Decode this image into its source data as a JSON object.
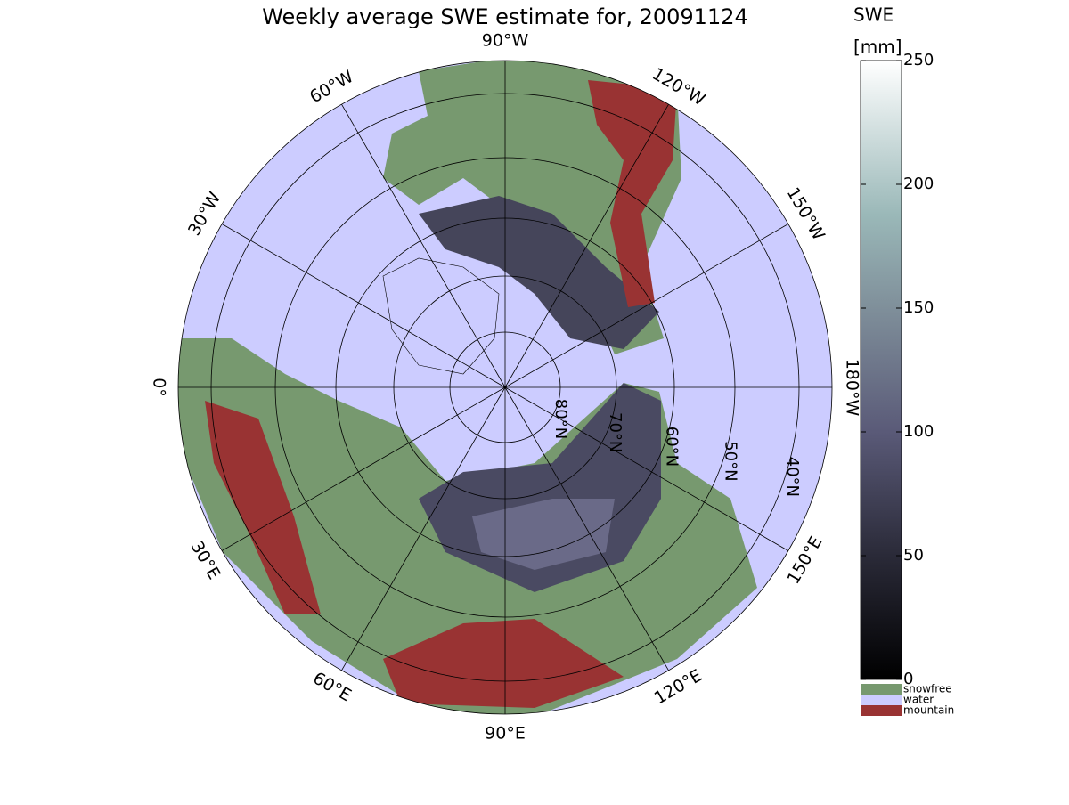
{
  "title": "Weekly average SWE estimate for, 20091124",
  "map": {
    "longitude_labels": [
      "90°W",
      "120°W",
      "150°W",
      "180°W",
      "150°E",
      "120°E",
      "90°E",
      "60°E",
      "30°E",
      "0°",
      "30°W",
      "60°W"
    ],
    "latitude_labels": [
      "80°N",
      "70°N",
      "60°N",
      "50°N",
      "40°N"
    ]
  },
  "colorbar": {
    "title": "SWE",
    "unit": "[mm]",
    "lim": [
      0,
      250
    ],
    "ticks": [
      0,
      50,
      100,
      150,
      200,
      250
    ],
    "categories": [
      {
        "label": "snowfree",
        "color": "#77996f"
      },
      {
        "label": "water",
        "color": "#ccccff"
      },
      {
        "label": "mountain",
        "color": "#993333"
      }
    ]
  }
}
